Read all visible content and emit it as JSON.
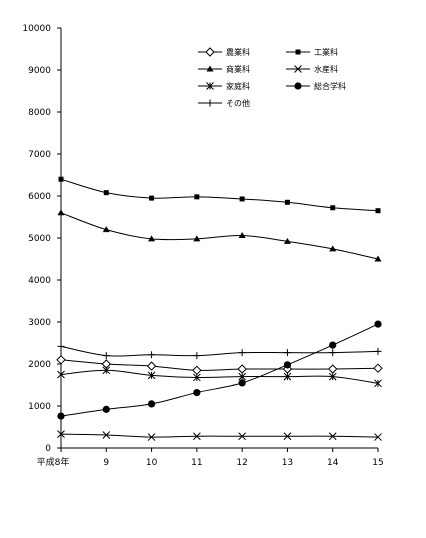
{
  "chart_data": {
    "type": "line",
    "categories": [
      "平成8年",
      "9",
      "10",
      "11",
      "12",
      "13",
      "14",
      "15"
    ],
    "ylim": [
      0,
      10000
    ],
    "yticks": [
      0,
      1000,
      2000,
      3000,
      4000,
      5000,
      6000,
      7000,
      8000,
      9000,
      10000
    ],
    "grid": false,
    "legend_position": "top-right",
    "series": [
      {
        "name": "農業科",
        "marker": "diamond-open",
        "values": [
          2100,
          2000,
          1950,
          1850,
          1880,
          1880,
          1880,
          1900
        ]
      },
      {
        "name": "工業科",
        "marker": "square-filled",
        "values": [
          6400,
          6080,
          5950,
          5980,
          5930,
          5850,
          5720,
          5650
        ]
      },
      {
        "name": "商業科",
        "marker": "triangle-filled",
        "values": [
          5600,
          5200,
          4980,
          4980,
          5060,
          4920,
          4740,
          4500
        ]
      },
      {
        "name": "水産科",
        "marker": "x",
        "values": [
          330,
          310,
          260,
          280,
          280,
          280,
          280,
          260
        ]
      },
      {
        "name": "家庭科",
        "marker": "asterisk",
        "values": [
          1750,
          1850,
          1730,
          1680,
          1700,
          1700,
          1700,
          1540
        ]
      },
      {
        "name": "総合学科",
        "marker": "circle-filled",
        "values": [
          760,
          920,
          1050,
          1320,
          1550,
          1980,
          2450,
          2950
        ]
      },
      {
        "name": "その他",
        "marker": "plus",
        "values": [
          2420,
          2200,
          2220,
          2200,
          2270,
          2270,
          2270,
          2300
        ]
      }
    ]
  }
}
